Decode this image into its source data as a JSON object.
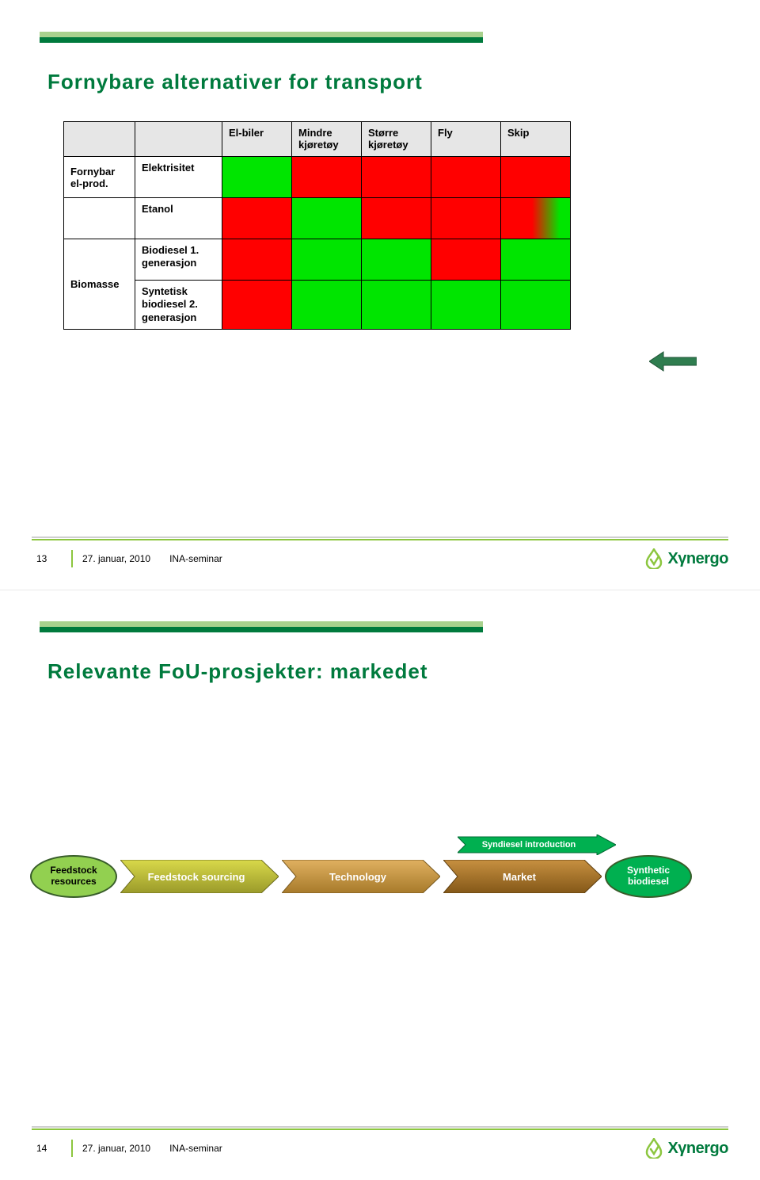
{
  "colors": {
    "brand_green": "#007a3d",
    "brand_light_green": "#8cc63f",
    "top_bar_light": "#a9d18e",
    "top_bar_dark": "#007a3d",
    "footer_line": "#8cc63f",
    "cell_green": "#00e500",
    "cell_red": "#ff0000",
    "header_grey": "#e6e6e6",
    "arrow_fill": "#2f7d4f",
    "title_color": "#007a3d"
  },
  "slide1": {
    "title": "Fornybare alternativer for transport",
    "col_headers": [
      "El-biler",
      "Mindre kjøretøy",
      "Større kjøretøy",
      "Fly",
      "Skip"
    ],
    "rows": [
      {
        "group": "Fornybar el-prod.",
        "label": "Elektrisitet",
        "cells": [
          "green",
          "red",
          "red",
          "red",
          "red"
        ]
      },
      {
        "group": "",
        "label": "Etanol",
        "cells": [
          "red",
          "green",
          "red",
          "red",
          "grad"
        ]
      },
      {
        "group": "Biomasse",
        "label": "Biodiesel 1. generasjon",
        "cells": [
          "red",
          "green",
          "green",
          "red",
          "green"
        ]
      },
      {
        "group": "",
        "label": "Syntetisk biodiesel 2. generasjon",
        "cells": [
          "red",
          "green",
          "green",
          "green",
          "green"
        ]
      }
    ],
    "footer": {
      "page": "13",
      "date": "27. januar, 2010",
      "label": "INA-seminar"
    }
  },
  "slide2": {
    "title": "Relevante FoU-prosjekter: markedet",
    "intro_label": "Syndiesel introduction",
    "ellipse_left": "Feedstock resources",
    "ellipse_right": "Synthetic biodiesel",
    "chevrons": [
      {
        "label": "Feedstock sourcing",
        "fill1": "#d4d439",
        "fill2": "#a8a82e",
        "text": "#ffffff"
      },
      {
        "label": "Technology",
        "fill1": "#d9a441",
        "fill2": "#b07f28",
        "text": "#ffffff"
      },
      {
        "label": "Market",
        "fill1": "#b98028",
        "fill2": "#8a5d18",
        "text": "#ffffff"
      }
    ],
    "intro_fill": "#00b050",
    "ellipse_left_fill": "#92d050",
    "ellipse_right_fill": "#00b050",
    "ellipse_border": "#385d2a",
    "footer": {
      "page": "14",
      "date": "27. januar, 2010",
      "label": "INA-seminar"
    }
  },
  "logo": {
    "text": "Xγnergo",
    "drop_color": "#8cc63f",
    "text_color": "#007a3d"
  }
}
